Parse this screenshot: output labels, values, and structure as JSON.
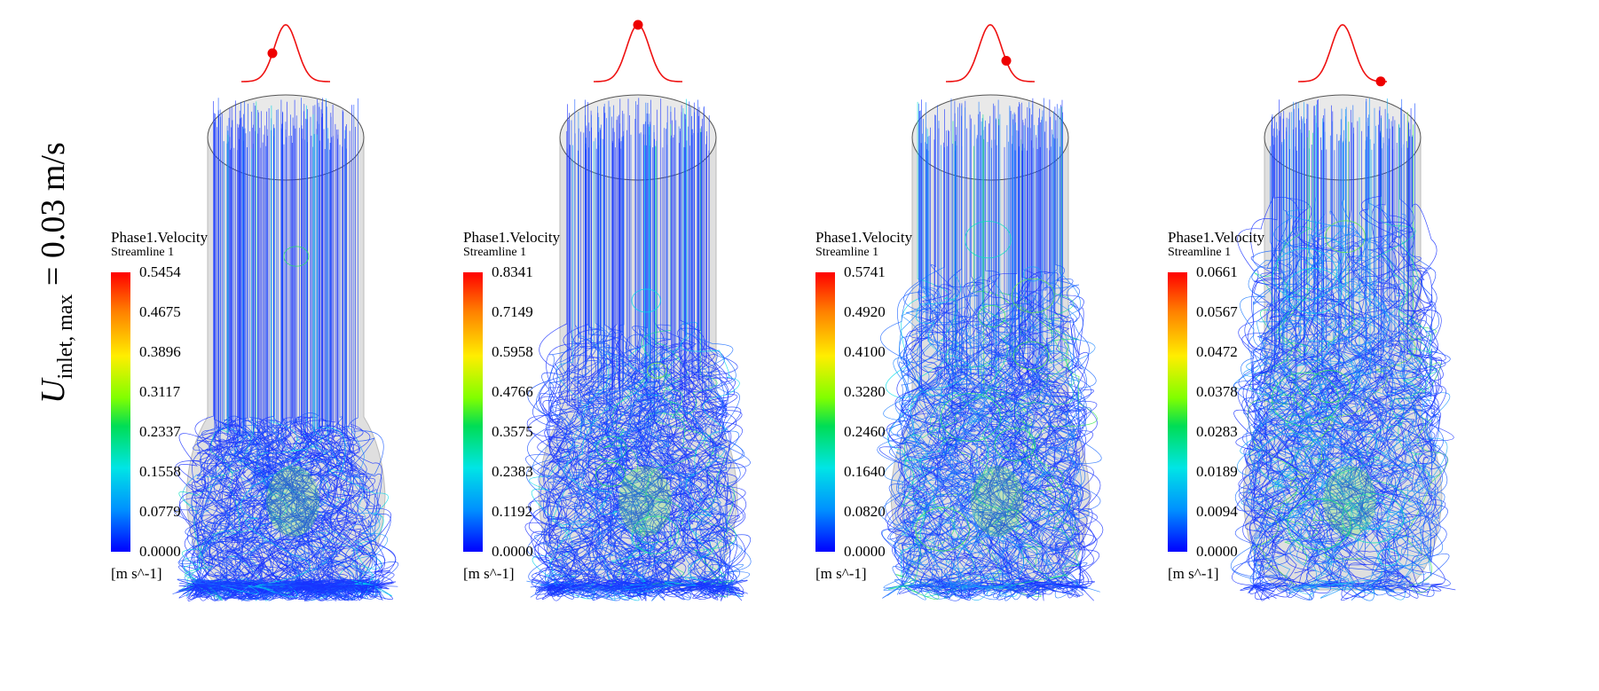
{
  "figure": {
    "row_label": {
      "symbol": "U",
      "subscript": "inlet, max",
      "rest": " = 0.03 m/s"
    },
    "panels": [
      {
        "legend": {
          "title": "Phase1.Velocity",
          "subtitle": "Streamline 1",
          "ticks": [
            "0.5454",
            "0.4675",
            "0.3896",
            "0.3117",
            "0.2337",
            "0.1558",
            "0.0779",
            "0.0000"
          ],
          "unit": "[m s^-1]"
        },
        "pulse_phase": 0.35
      },
      {
        "legend": {
          "title": "Phase1.Velocity",
          "subtitle": "Streamline 1",
          "ticks": [
            "0.8341",
            "0.7149",
            "0.5958",
            "0.4766",
            "0.3575",
            "0.2383",
            "0.1192",
            "0.0000"
          ],
          "unit": "[m s^-1]"
        },
        "pulse_phase": 0.5
      },
      {
        "legend": {
          "title": "Phase1.Velocity",
          "subtitle": "Streamline 1",
          "ticks": [
            "0.5741",
            "0.4920",
            "0.4100",
            "0.3280",
            "0.2460",
            "0.1640",
            "0.0820",
            "0.0000"
          ],
          "unit": "[m s^-1]"
        },
        "pulse_phase": 0.68
      },
      {
        "legend": {
          "title": "Phase1.Velocity",
          "subtitle": "Streamline 1",
          "ticks": [
            "0.0661",
            "0.0567",
            "0.0472",
            "0.0378",
            "0.0283",
            "0.0189",
            "0.0094",
            "0.0000"
          ],
          "unit": "[m s^-1]"
        },
        "pulse_phase": 0.93
      }
    ],
    "colors": {
      "pulse_curve": "#ee1111",
      "pulse_marker": "#ee0000",
      "vessel_outline": "#555555",
      "vessel_fill": "#dcdcdc",
      "streamline_base": "#1a33ff"
    }
  }
}
